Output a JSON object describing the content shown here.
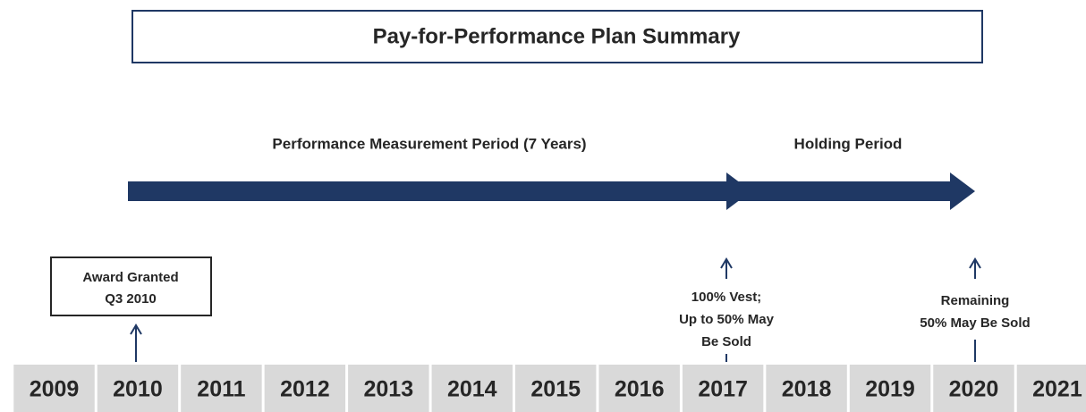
{
  "header": {
    "title": "Pay-for-Performance Plan Summary"
  },
  "periods": [
    {
      "label": "Performance Measurement Period (7 Years)"
    },
    {
      "label": "Holding Period"
    }
  ],
  "events": [
    {
      "lines": [
        "Award Granted",
        "Q3 2010"
      ]
    },
    {
      "lines": [
        "100% Vest;",
        "Up to 50% May",
        "Be Sold"
      ]
    },
    {
      "lines": [
        "Remaining",
        "50% May Be Sold"
      ]
    }
  ],
  "years": [
    "2009",
    "2010",
    "2011",
    "2012",
    "2013",
    "2014",
    "2015",
    "2016",
    "2017",
    "2018",
    "2019",
    "2020",
    "2021"
  ]
}
